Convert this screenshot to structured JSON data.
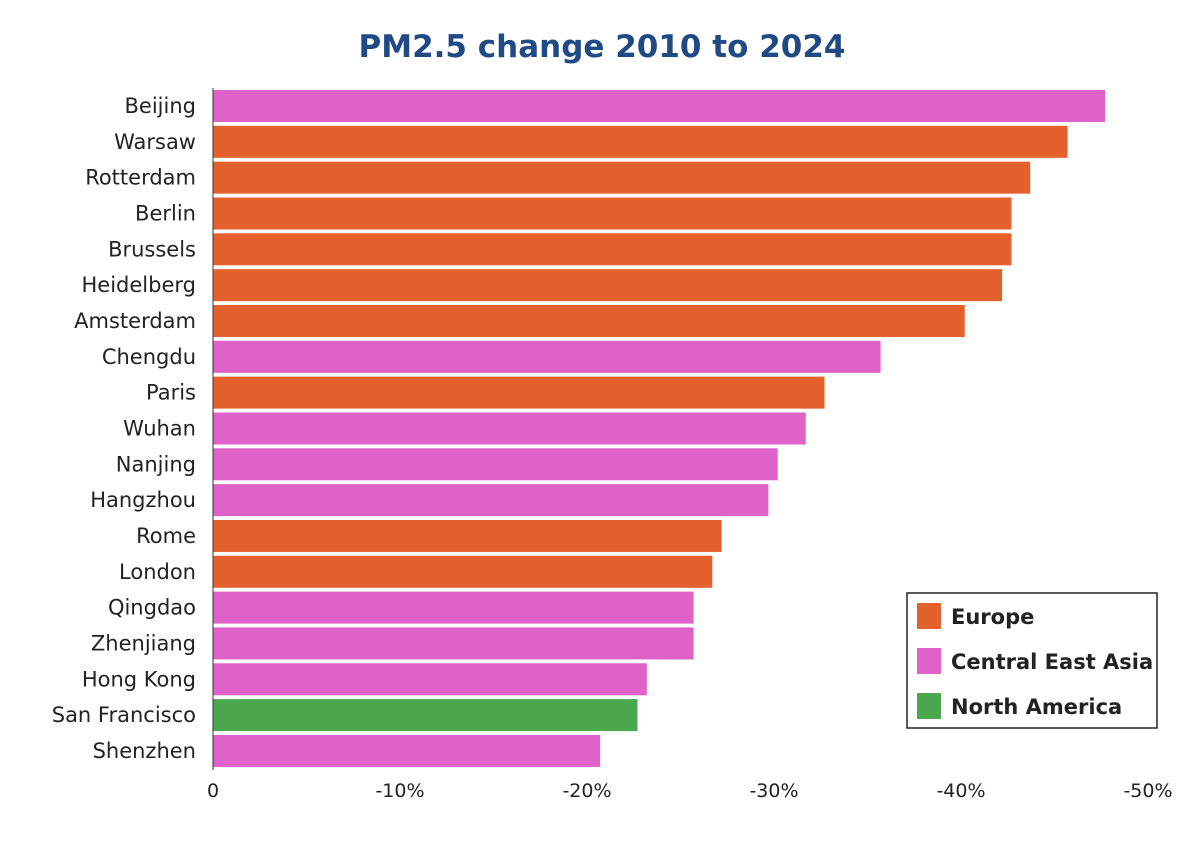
{
  "chart_data": {
    "type": "bar",
    "orientation": "horizontal",
    "title": "PM2.5 change 2010 to 2024",
    "xlabel": "",
    "ylabel": "",
    "xlim": [
      0,
      -50
    ],
    "grid": false,
    "legend_position": "bottom-right",
    "x_ticks": [
      0,
      -10,
      -20,
      -30,
      -40,
      -50
    ],
    "x_tick_labels": [
      "0",
      "-10%",
      "-20%",
      "-30%",
      "-40%",
      "-50%"
    ],
    "regions": [
      {
        "name": "Europe",
        "color": "#e4602c"
      },
      {
        "name": "Central East Asia",
        "color": "#df62c8"
      },
      {
        "name": "North America",
        "color": "#4ca84e"
      }
    ],
    "categories": [
      "Beijing",
      "Warsaw",
      "Rotterdam",
      "Berlin",
      "Brussels",
      "Heidelberg",
      "Amsterdam",
      "Chengdu",
      "Paris",
      "Wuhan",
      "Nanjing",
      "Hangzhou",
      "Rome",
      "London",
      "Qingdao",
      "Zhenjiang",
      "Hong Kong",
      "San Francisco",
      "Shenzhen"
    ],
    "values": [
      -47.7,
      -45.7,
      -43.7,
      -42.7,
      -42.7,
      -42.2,
      -40.2,
      -35.7,
      -32.7,
      -31.7,
      -30.2,
      -29.7,
      -27.2,
      -26.7,
      -25.7,
      -25.7,
      -23.2,
      -22.7,
      -20.7
    ],
    "category_regions": [
      "Central East Asia",
      "Europe",
      "Europe",
      "Europe",
      "Europe",
      "Europe",
      "Europe",
      "Central East Asia",
      "Europe",
      "Central East Asia",
      "Central East Asia",
      "Central East Asia",
      "Europe",
      "Europe",
      "Central East Asia",
      "Central East Asia",
      "Central East Asia",
      "North America",
      "Central East Asia"
    ]
  }
}
